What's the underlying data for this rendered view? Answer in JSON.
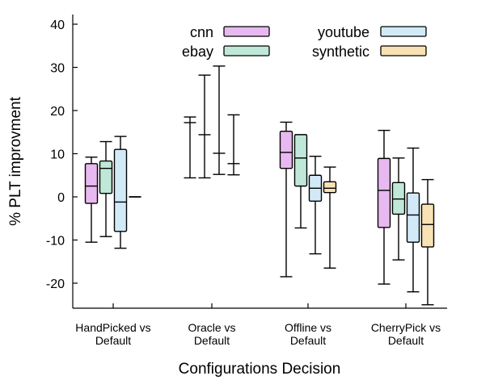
{
  "chart_data": {
    "type": "box",
    "xlabel": "Configurations Decision",
    "ylabel": "% PLT improvment",
    "ylim": [
      -26,
      44
    ],
    "yticks": [
      40,
      30,
      20,
      10,
      0,
      -10,
      -20
    ],
    "legend": {
      "placement": "top",
      "columns": 2
    },
    "categories": [
      {
        "lines": [
          "HandPicked vs",
          "Default"
        ]
      },
      {
        "lines": [
          "Oracle vs",
          "Default"
        ]
      },
      {
        "lines": [
          "Offline vs",
          "Default"
        ]
      },
      {
        "lines": [
          "CherryPick vs",
          "Default"
        ]
      }
    ],
    "series": [
      {
        "name": "cnn",
        "color": "#e8b8f0",
        "boxes": [
          {
            "min": -10.5,
            "q1": -1.5,
            "median": 2.5,
            "q3": 7.7,
            "max": 9.2
          },
          {
            "min": 4.4,
            "q1": 17.2,
            "median": 17.2,
            "q3": 17.2,
            "max": 18.5
          },
          {
            "min": -18.5,
            "q1": 6.6,
            "median": 10.3,
            "q3": 15.2,
            "max": 17.3
          },
          {
            "min": -20.2,
            "q1": -7.1,
            "median": 1.5,
            "q3": 8.9,
            "max": 15.4
          }
        ]
      },
      {
        "name": "ebay",
        "color": "#bfe8d8",
        "boxes": [
          {
            "min": -9.2,
            "q1": 0.8,
            "median": 6.6,
            "q3": 8.3,
            "max": 12.8
          },
          {
            "min": 4.4,
            "q1": 14.4,
            "median": 14.4,
            "q3": 14.4,
            "max": 28.2
          },
          {
            "min": -7.2,
            "q1": 2.5,
            "median": 9.0,
            "q3": 14.4,
            "max": 14.4
          },
          {
            "min": -14.6,
            "q1": -4.0,
            "median": -0.5,
            "q3": 3.3,
            "max": 9.0
          }
        ]
      },
      {
        "name": "youtube",
        "color": "#d2eaf8",
        "boxes": [
          {
            "min": -11.9,
            "q1": -8.0,
            "median": -1.2,
            "q3": 11.0,
            "max": 14.0
          },
          {
            "min": 5.2,
            "q1": 10.1,
            "median": 10.1,
            "q3": 10.1,
            "max": 30.3
          },
          {
            "min": -13.2,
            "q1": -1.0,
            "median": 2.0,
            "q3": 5.0,
            "max": 9.4
          },
          {
            "min": -22.0,
            "q1": -10.5,
            "median": -4.2,
            "q3": 0.9,
            "max": 11.3
          }
        ]
      },
      {
        "name": "synthetic",
        "color": "#f8e2b4",
        "boxes": [
          {
            "min": 0.0,
            "q1": 0.0,
            "median": 0.0,
            "q3": 0.0,
            "max": 0.0
          },
          {
            "min": 5.1,
            "q1": 7.7,
            "median": 7.7,
            "q3": 7.7,
            "max": 19.0
          },
          {
            "min": -16.5,
            "q1": 1.0,
            "median": 2.0,
            "q3": 3.5,
            "max": 6.9
          },
          {
            "min": -25.0,
            "q1": -11.6,
            "median": -6.4,
            "q3": -1.7,
            "max": 4.0
          }
        ]
      }
    ]
  }
}
